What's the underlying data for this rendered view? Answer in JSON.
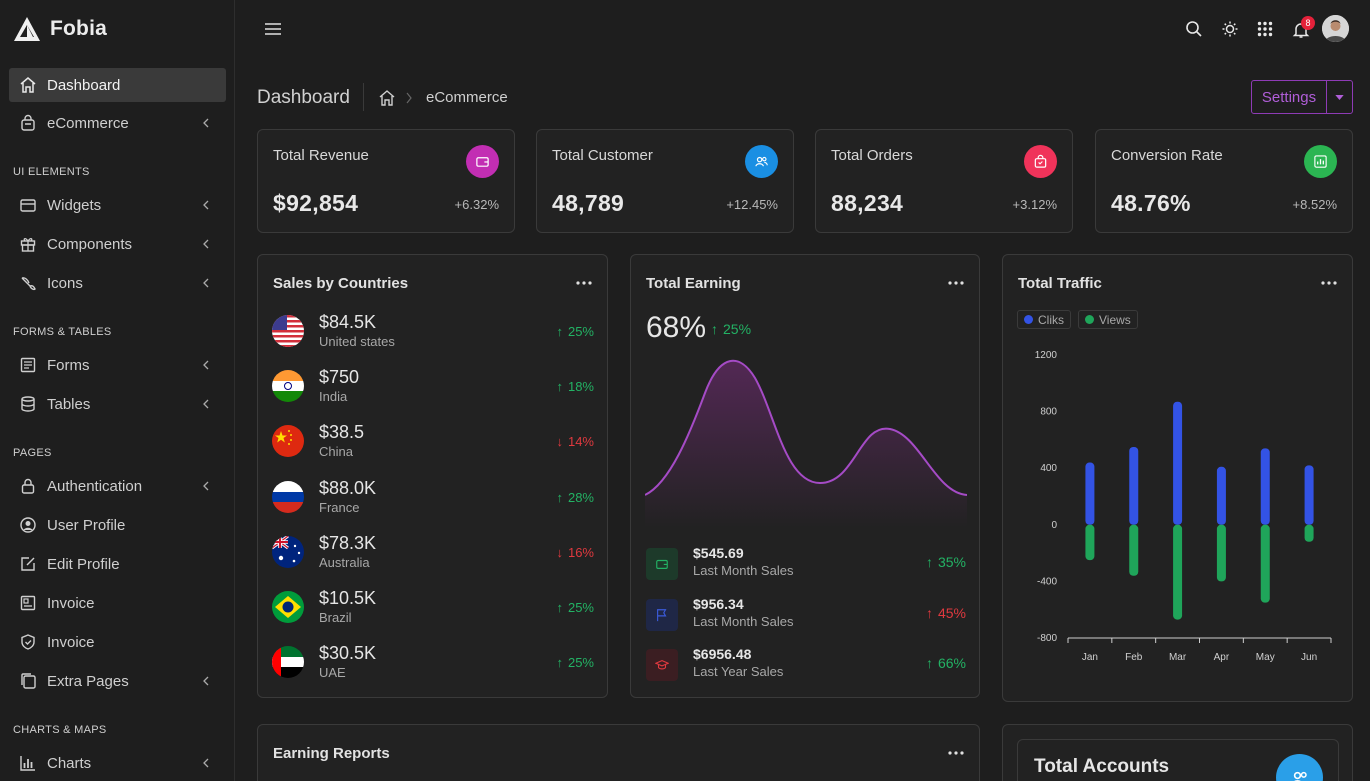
{
  "brand": {
    "name": "Fobia"
  },
  "sidebar": {
    "items": [
      {
        "label": "Dashboard",
        "icon": "home-icon"
      },
      {
        "label": "eCommerce",
        "icon": "bag-icon"
      },
      {
        "label": "Widgets",
        "icon": "widgets-icon"
      },
      {
        "label": "Components",
        "icon": "gift-icon"
      },
      {
        "label": "Icons",
        "icon": "brush-icon"
      },
      {
        "label": "Forms",
        "icon": "forms-icon"
      },
      {
        "label": "Tables",
        "icon": "database-icon"
      },
      {
        "label": "Authentication",
        "icon": "lock-icon"
      },
      {
        "label": "User Profile",
        "icon": "user-circle-icon"
      },
      {
        "label": "Edit Profile",
        "icon": "edit-icon"
      },
      {
        "label": "Invoice",
        "icon": "invoice-icon"
      },
      {
        "label": "Invoice",
        "icon": "shield-icon"
      },
      {
        "label": "Extra Pages",
        "icon": "pages-icon"
      },
      {
        "label": "Charts",
        "icon": "chart-icon"
      }
    ],
    "sections": [
      "UI ELEMENTS",
      "FORMS & TABLES",
      "PAGES",
      "CHARTS & MAPS"
    ]
  },
  "topbar": {
    "notification_count": "8"
  },
  "breadcrumb": {
    "title": "Dashboard",
    "current": "eCommerce"
  },
  "settings_label": "Settings",
  "stats": [
    {
      "title": "Total Revenue",
      "value": "$92,854",
      "change": "+6.32%",
      "color": "#c22eb3"
    },
    {
      "title": "Total Customer",
      "value": "48,789",
      "change": "+12.45%",
      "color": "#1a8fe3"
    },
    {
      "title": "Total Orders",
      "value": "88,234",
      "change": "+3.12%",
      "color": "#f0335a"
    },
    {
      "title": "Conversion Rate",
      "value": "48.76%",
      "change": "+8.52%",
      "color": "#2bb552"
    }
  ],
  "countries": {
    "title": "Sales by Countries",
    "rows": [
      {
        "amount": "$84.5K",
        "name": "United states",
        "pct": "25%",
        "trend": "up"
      },
      {
        "amount": "$750",
        "name": "India",
        "pct": "18%",
        "trend": "up"
      },
      {
        "amount": "$38.5",
        "name": "China",
        "pct": "14%",
        "trend": "down"
      },
      {
        "amount": "$88.0K",
        "name": "France",
        "pct": "28%",
        "trend": "up"
      },
      {
        "amount": "$78.3K",
        "name": "Australia",
        "pct": "16%",
        "trend": "down"
      },
      {
        "amount": "$10.5K",
        "name": "Brazil",
        "pct": "25%",
        "trend": "up"
      },
      {
        "amount": "$30.5K",
        "name": "UAE",
        "pct": "25%",
        "trend": "up"
      }
    ]
  },
  "earning": {
    "title": "Total Earning",
    "percent": "68%",
    "delta": "25%",
    "rows": [
      {
        "amount": "$545.69",
        "label": "Last Month Sales",
        "pct": "35%",
        "trend": "up",
        "color": "#23b264"
      },
      {
        "amount": "$956.34",
        "label": "Last Month Sales",
        "pct": "45%",
        "trend": "up-red",
        "color": "#3b5bdb"
      },
      {
        "amount": "$6956.48",
        "label": "Last Year Sales",
        "pct": "66%",
        "trend": "up",
        "color": "#e0393f"
      }
    ]
  },
  "traffic": {
    "title": "Total Traffic",
    "legend": [
      "Cliks",
      "Views"
    ]
  },
  "chart_data": {
    "type": "bar",
    "categories": [
      "Jan",
      "Feb",
      "Mar",
      "Apr",
      "May",
      "Jun"
    ],
    "series": [
      {
        "name": "Cliks",
        "values": [
          440,
          550,
          870,
          410,
          540,
          420
        ],
        "color": "#3353e5"
      },
      {
        "name": "Views",
        "values": [
          -250,
          -360,
          -670,
          -400,
          -550,
          -120
        ],
        "color": "#1fa55a"
      }
    ],
    "ylim": [
      -800,
      1200
    ],
    "yticks": [
      "1200",
      "800",
      "400",
      "0",
      "-400",
      "-800"
    ]
  },
  "earning_reports": {
    "title": "Earning Reports"
  },
  "accounts": {
    "title": "Total Accounts"
  }
}
